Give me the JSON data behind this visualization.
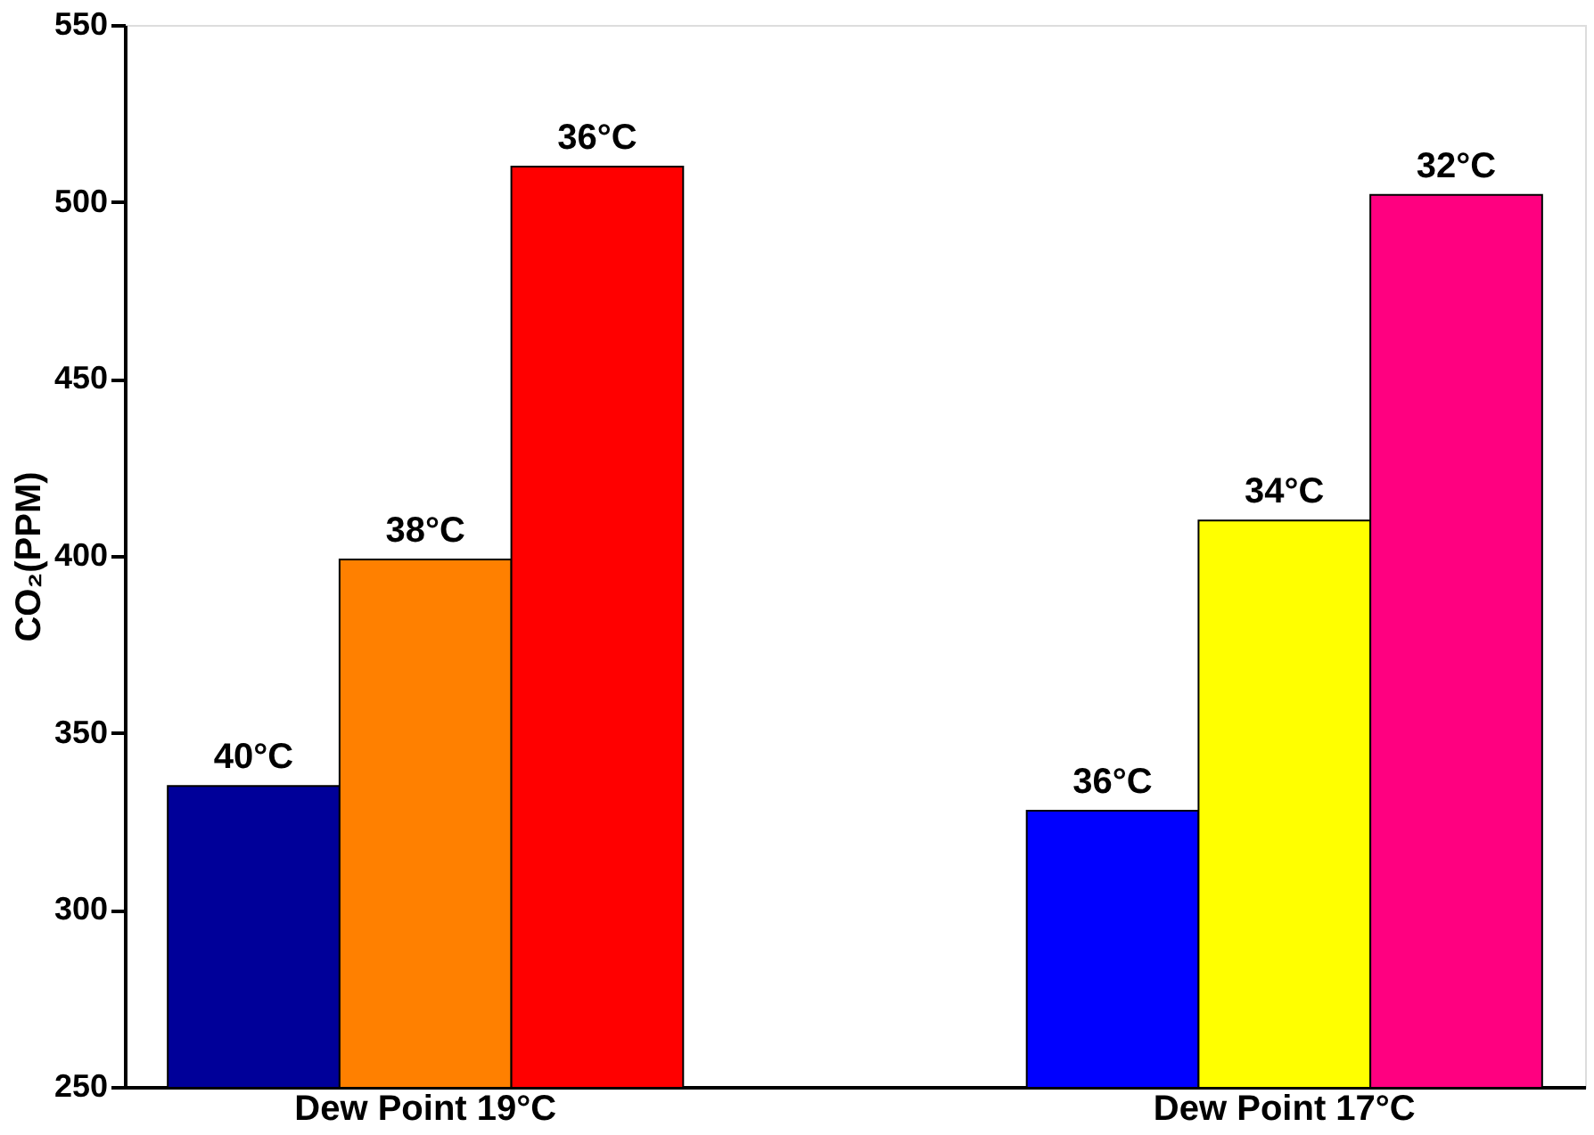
{
  "chart_data": {
    "type": "bar",
    "ylabel": "CO₂(PPM)",
    "categories": [
      "Dew Point 19°C",
      "Dew Point 17°C"
    ],
    "series": [
      {
        "colors": [
          "#000099",
          "#0000ff"
        ],
        "values": [
          335,
          328
        ]
      },
      {
        "colors": [
          "#ff8000",
          "#ffff00"
        ],
        "values": [
          399,
          410
        ]
      },
      {
        "colors": [
          "#ff0000",
          "#ff0080"
        ],
        "values": [
          510,
          502
        ]
      }
    ],
    "annotations": [
      "40°C",
      "38°C",
      "36°C",
      "36°C",
      "34°C",
      "32°C"
    ],
    "ylim": [
      250,
      550
    ],
    "yticks": [
      250,
      300,
      350,
      400,
      450,
      500,
      550
    ],
    "grid": false,
    "legend": false
  }
}
